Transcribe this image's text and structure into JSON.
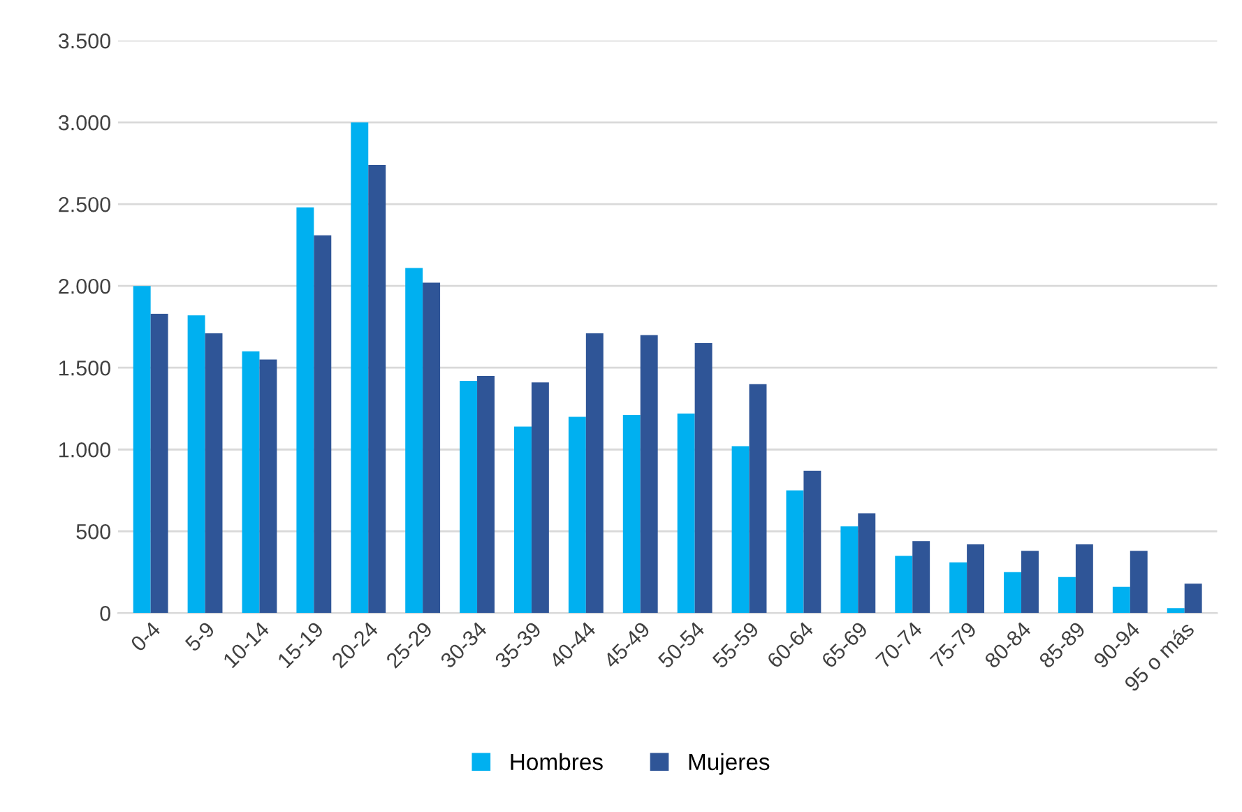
{
  "chart_data": {
    "type": "bar",
    "categories": [
      "0-4",
      "5-9",
      "10-14",
      "15-19",
      "20-24",
      "25-29",
      "30-34",
      "35-39",
      "40-44",
      "45-49",
      "50-54",
      "55-59",
      "60-64",
      "65-69",
      "70-74",
      "75-79",
      "80-84",
      "85-89",
      "90-94",
      "95 o más"
    ],
    "series": [
      {
        "name": "Hombres",
        "color": "#00b0f0",
        "values": [
          2000,
          1820,
          1600,
          2480,
          3000,
          2110,
          1420,
          1140,
          1200,
          1210,
          1220,
          1020,
          750,
          530,
          350,
          310,
          250,
          220,
          160,
          30
        ]
      },
      {
        "name": "Mujeres",
        "color": "#2f5597",
        "values": [
          1830,
          1710,
          1550,
          2310,
          2740,
          2020,
          1450,
          1410,
          1710,
          1700,
          1650,
          1400,
          870,
          610,
          440,
          420,
          380,
          420,
          380,
          180
        ]
      }
    ],
    "ylim": [
      0,
      3500
    ],
    "yticks": [
      {
        "value": 0,
        "label": "0"
      },
      {
        "value": 500,
        "label": "500"
      },
      {
        "value": 1000,
        "label": "1.000"
      },
      {
        "value": 1500,
        "label": "1.500"
      },
      {
        "value": 2000,
        "label": "2.000"
      },
      {
        "value": 2500,
        "label": "2.500"
      },
      {
        "value": 3000,
        "label": "3.000"
      },
      {
        "value": 3500,
        "label": "3.500"
      }
    ],
    "grid": "y",
    "legend": "bottom"
  }
}
